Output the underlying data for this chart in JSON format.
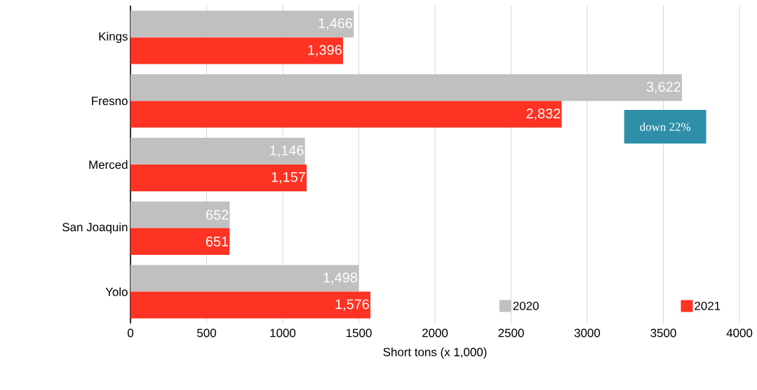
{
  "chart_data": {
    "type": "bar",
    "orientation": "horizontal",
    "categories": [
      "Kings",
      "Fresno",
      "Merced",
      "San Joaquin",
      "Yolo"
    ],
    "series": [
      {
        "name": "2020",
        "color": "#c0c0c0",
        "values": [
          1466,
          3622,
          1146,
          652,
          1498
        ],
        "value_labels": [
          "1,466",
          "3,622",
          "1,146",
          "652",
          "1,498"
        ]
      },
      {
        "name": "2021",
        "color": "#fe3323",
        "values": [
          1396,
          2832,
          1157,
          651,
          1576
        ],
        "value_labels": [
          "1,396",
          "2,832",
          "1,157",
          "651",
          "1,576"
        ]
      }
    ],
    "xlabel": "Short tons (x 1,000)",
    "xlim": [
      0,
      4000
    ],
    "xticks": [
      0,
      500,
      1000,
      1500,
      2000,
      2500,
      3000,
      3500,
      4000
    ],
    "grid": "x",
    "legend": "bottom right",
    "data_labels": true,
    "annotations": [
      "down 22%"
    ]
  }
}
